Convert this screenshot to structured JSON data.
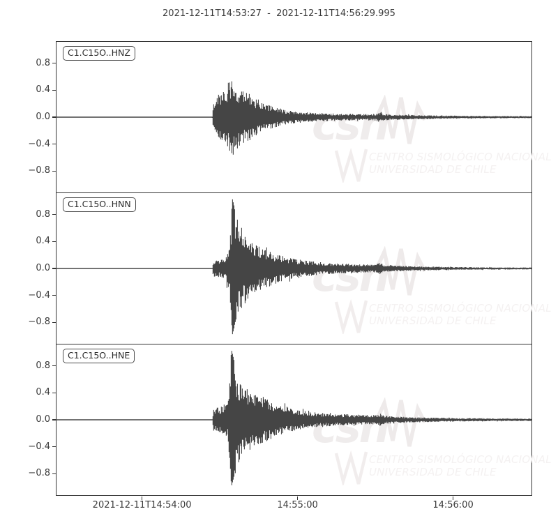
{
  "title": "2021-12-11T14:53:27  -  2021-12-11T14:56:29.995",
  "watermark": {
    "brand": "csn",
    "line1": "CENTRO SISMOLÓGICO NACIONAL",
    "line2": "UNIVERSIDAD DE CHILE"
  },
  "colors": {
    "trace": "#454545",
    "axis": "#333333",
    "tick_label": "#3a3a3a",
    "watermark": "#efecec",
    "watermark_text": "#f4f1f1",
    "label_border": "#4a4a4a",
    "background": "#ffffff"
  },
  "chart_data": {
    "type": "line",
    "subtype": "seismogram-3-channel",
    "title": "2021-12-11T14:53:27  -  2021-12-11T14:56:29.995",
    "time_start": "2021-12-11T14:53:27",
    "time_end": "2021-12-11T14:56:29.995",
    "duration_seconds": 182.995,
    "ylim": [
      -1.12,
      1.12
    ],
    "y_ticks": [
      0.8,
      0.4,
      0.0,
      -0.4,
      -0.8
    ],
    "y_tick_labels": [
      "0.8",
      "0.4",
      "0.0",
      "−0.4",
      "−0.8"
    ],
    "x_ticks": [
      {
        "label": "2021-12-11T14:54:00",
        "seconds": 33
      },
      {
        "label": "14:55:00",
        "seconds": 93
      },
      {
        "label": "14:56:00",
        "seconds": 153
      }
    ],
    "grid": false,
    "legend": "none",
    "series": [
      {
        "name": "C1.C15O..HNZ",
        "peak_amplitude": 0.63,
        "envelope": [
          [
            0,
            0.006
          ],
          [
            60,
            0.006
          ],
          [
            60.5,
            0.25
          ],
          [
            62,
            0.32
          ],
          [
            64,
            0.38
          ],
          [
            66,
            0.45
          ],
          [
            67,
            0.55
          ],
          [
            67.6,
            0.63
          ],
          [
            68.2,
            0.6
          ],
          [
            69,
            0.5
          ],
          [
            71,
            0.44
          ],
          [
            74,
            0.36
          ],
          [
            77,
            0.28
          ],
          [
            80,
            0.22
          ],
          [
            83,
            0.17
          ],
          [
            86,
            0.13
          ],
          [
            90,
            0.1
          ],
          [
            95,
            0.08
          ],
          [
            100,
            0.065
          ],
          [
            106,
            0.055
          ],
          [
            112,
            0.05
          ],
          [
            118,
            0.045
          ],
          [
            123,
            0.05
          ],
          [
            124.5,
            0.08
          ],
          [
            126,
            0.05
          ],
          [
            130,
            0.04
          ],
          [
            140,
            0.03
          ],
          [
            150,
            0.025
          ],
          [
            160,
            0.02
          ],
          [
            170,
            0.018
          ],
          [
            183,
            0.015
          ]
        ]
      },
      {
        "name": "C1.C15O..HNN",
        "peak_amplitude": 1.03,
        "envelope": [
          [
            0,
            0.006
          ],
          [
            60,
            0.006
          ],
          [
            60.5,
            0.12
          ],
          [
            63,
            0.13
          ],
          [
            65,
            0.15
          ],
          [
            66.5,
            0.35
          ],
          [
            67.3,
            0.75
          ],
          [
            67.8,
            1.03
          ],
          [
            68.3,
            0.95
          ],
          [
            69,
            0.8
          ],
          [
            70,
            0.72
          ],
          [
            71.5,
            0.6
          ],
          [
            73,
            0.5
          ],
          [
            75,
            0.44
          ],
          [
            77,
            0.38
          ],
          [
            79,
            0.33
          ],
          [
            82,
            0.27
          ],
          [
            85,
            0.22
          ],
          [
            88,
            0.18
          ],
          [
            92,
            0.14
          ],
          [
            96,
            0.12
          ],
          [
            100,
            0.1
          ],
          [
            105,
            0.085
          ],
          [
            110,
            0.075
          ],
          [
            115,
            0.065
          ],
          [
            120,
            0.06
          ],
          [
            123,
            0.06
          ],
          [
            124.5,
            0.09
          ],
          [
            126,
            0.06
          ],
          [
            130,
            0.045
          ],
          [
            136,
            0.035
          ],
          [
            145,
            0.028
          ],
          [
            155,
            0.022
          ],
          [
            165,
            0.018
          ],
          [
            183,
            0.015
          ]
        ]
      },
      {
        "name": "C1.C15O..HNE",
        "peak_amplitude": 1.05,
        "envelope": [
          [
            0,
            0.006
          ],
          [
            60,
            0.006
          ],
          [
            60.5,
            0.17
          ],
          [
            62,
            0.18
          ],
          [
            64,
            0.2
          ],
          [
            66,
            0.3
          ],
          [
            66.9,
            0.7
          ],
          [
            67.4,
            1.05
          ],
          [
            68,
            0.95
          ],
          [
            68.6,
            0.85
          ],
          [
            69.5,
            0.7
          ],
          [
            71,
            0.58
          ],
          [
            73,
            0.5
          ],
          [
            75,
            0.44
          ],
          [
            77,
            0.4
          ],
          [
            80,
            0.34
          ],
          [
            83,
            0.28
          ],
          [
            86,
            0.23
          ],
          [
            90,
            0.18
          ],
          [
            94,
            0.14
          ],
          [
            98,
            0.12
          ],
          [
            103,
            0.1
          ],
          [
            108,
            0.09
          ],
          [
            114,
            0.08
          ],
          [
            120,
            0.07
          ],
          [
            123,
            0.07
          ],
          [
            124.5,
            0.1
          ],
          [
            126,
            0.065
          ],
          [
            130,
            0.05
          ],
          [
            137,
            0.04
          ],
          [
            147,
            0.03
          ],
          [
            158,
            0.025
          ],
          [
            170,
            0.02
          ],
          [
            183,
            0.018
          ]
        ]
      }
    ]
  }
}
